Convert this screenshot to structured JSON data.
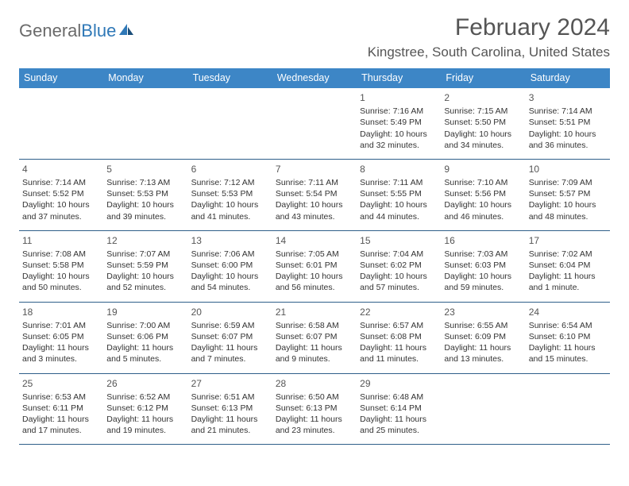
{
  "logo": {
    "part1": "General",
    "part2": "Blue"
  },
  "header": {
    "month_title": "February 2024",
    "location": "Kingstree, South Carolina, United States"
  },
  "colors": {
    "header_bg": "#3d86c6",
    "header_text": "#ffffff",
    "border": "#2f5f8a",
    "text": "#333333",
    "title": "#555555",
    "logo_gray": "#6a6a6a",
    "logo_blue": "#2f78b7",
    "page_bg": "#ffffff"
  },
  "day_names": [
    "Sunday",
    "Monday",
    "Tuesday",
    "Wednesday",
    "Thursday",
    "Friday",
    "Saturday"
  ],
  "layout": {
    "columns": 7,
    "rows": 5,
    "cell_font_size_pt": 8,
    "daynum_font_size_pt": 9,
    "header_font_size_pt": 10,
    "title_font_size_pt": 23,
    "location_font_size_pt": 13
  },
  "weeks": [
    [
      {
        "empty": true
      },
      {
        "empty": true
      },
      {
        "empty": true
      },
      {
        "empty": true
      },
      {
        "day": "1",
        "sunrise": "Sunrise: 7:16 AM",
        "sunset": "Sunset: 5:49 PM",
        "daylight": "Daylight: 10 hours and 32 minutes."
      },
      {
        "day": "2",
        "sunrise": "Sunrise: 7:15 AM",
        "sunset": "Sunset: 5:50 PM",
        "daylight": "Daylight: 10 hours and 34 minutes."
      },
      {
        "day": "3",
        "sunrise": "Sunrise: 7:14 AM",
        "sunset": "Sunset: 5:51 PM",
        "daylight": "Daylight: 10 hours and 36 minutes."
      }
    ],
    [
      {
        "day": "4",
        "sunrise": "Sunrise: 7:14 AM",
        "sunset": "Sunset: 5:52 PM",
        "daylight": "Daylight: 10 hours and 37 minutes."
      },
      {
        "day": "5",
        "sunrise": "Sunrise: 7:13 AM",
        "sunset": "Sunset: 5:53 PM",
        "daylight": "Daylight: 10 hours and 39 minutes."
      },
      {
        "day": "6",
        "sunrise": "Sunrise: 7:12 AM",
        "sunset": "Sunset: 5:53 PM",
        "daylight": "Daylight: 10 hours and 41 minutes."
      },
      {
        "day": "7",
        "sunrise": "Sunrise: 7:11 AM",
        "sunset": "Sunset: 5:54 PM",
        "daylight": "Daylight: 10 hours and 43 minutes."
      },
      {
        "day": "8",
        "sunrise": "Sunrise: 7:11 AM",
        "sunset": "Sunset: 5:55 PM",
        "daylight": "Daylight: 10 hours and 44 minutes."
      },
      {
        "day": "9",
        "sunrise": "Sunrise: 7:10 AM",
        "sunset": "Sunset: 5:56 PM",
        "daylight": "Daylight: 10 hours and 46 minutes."
      },
      {
        "day": "10",
        "sunrise": "Sunrise: 7:09 AM",
        "sunset": "Sunset: 5:57 PM",
        "daylight": "Daylight: 10 hours and 48 minutes."
      }
    ],
    [
      {
        "day": "11",
        "sunrise": "Sunrise: 7:08 AM",
        "sunset": "Sunset: 5:58 PM",
        "daylight": "Daylight: 10 hours and 50 minutes."
      },
      {
        "day": "12",
        "sunrise": "Sunrise: 7:07 AM",
        "sunset": "Sunset: 5:59 PM",
        "daylight": "Daylight: 10 hours and 52 minutes."
      },
      {
        "day": "13",
        "sunrise": "Sunrise: 7:06 AM",
        "sunset": "Sunset: 6:00 PM",
        "daylight": "Daylight: 10 hours and 54 minutes."
      },
      {
        "day": "14",
        "sunrise": "Sunrise: 7:05 AM",
        "sunset": "Sunset: 6:01 PM",
        "daylight": "Daylight: 10 hours and 56 minutes."
      },
      {
        "day": "15",
        "sunrise": "Sunrise: 7:04 AM",
        "sunset": "Sunset: 6:02 PM",
        "daylight": "Daylight: 10 hours and 57 minutes."
      },
      {
        "day": "16",
        "sunrise": "Sunrise: 7:03 AM",
        "sunset": "Sunset: 6:03 PM",
        "daylight": "Daylight: 10 hours and 59 minutes."
      },
      {
        "day": "17",
        "sunrise": "Sunrise: 7:02 AM",
        "sunset": "Sunset: 6:04 PM",
        "daylight": "Daylight: 11 hours and 1 minute."
      }
    ],
    [
      {
        "day": "18",
        "sunrise": "Sunrise: 7:01 AM",
        "sunset": "Sunset: 6:05 PM",
        "daylight": "Daylight: 11 hours and 3 minutes."
      },
      {
        "day": "19",
        "sunrise": "Sunrise: 7:00 AM",
        "sunset": "Sunset: 6:06 PM",
        "daylight": "Daylight: 11 hours and 5 minutes."
      },
      {
        "day": "20",
        "sunrise": "Sunrise: 6:59 AM",
        "sunset": "Sunset: 6:07 PM",
        "daylight": "Daylight: 11 hours and 7 minutes."
      },
      {
        "day": "21",
        "sunrise": "Sunrise: 6:58 AM",
        "sunset": "Sunset: 6:07 PM",
        "daylight": "Daylight: 11 hours and 9 minutes."
      },
      {
        "day": "22",
        "sunrise": "Sunrise: 6:57 AM",
        "sunset": "Sunset: 6:08 PM",
        "daylight": "Daylight: 11 hours and 11 minutes."
      },
      {
        "day": "23",
        "sunrise": "Sunrise: 6:55 AM",
        "sunset": "Sunset: 6:09 PM",
        "daylight": "Daylight: 11 hours and 13 minutes."
      },
      {
        "day": "24",
        "sunrise": "Sunrise: 6:54 AM",
        "sunset": "Sunset: 6:10 PM",
        "daylight": "Daylight: 11 hours and 15 minutes."
      }
    ],
    [
      {
        "day": "25",
        "sunrise": "Sunrise: 6:53 AM",
        "sunset": "Sunset: 6:11 PM",
        "daylight": "Daylight: 11 hours and 17 minutes."
      },
      {
        "day": "26",
        "sunrise": "Sunrise: 6:52 AM",
        "sunset": "Sunset: 6:12 PM",
        "daylight": "Daylight: 11 hours and 19 minutes."
      },
      {
        "day": "27",
        "sunrise": "Sunrise: 6:51 AM",
        "sunset": "Sunset: 6:13 PM",
        "daylight": "Daylight: 11 hours and 21 minutes."
      },
      {
        "day": "28",
        "sunrise": "Sunrise: 6:50 AM",
        "sunset": "Sunset: 6:13 PM",
        "daylight": "Daylight: 11 hours and 23 minutes."
      },
      {
        "day": "29",
        "sunrise": "Sunrise: 6:48 AM",
        "sunset": "Sunset: 6:14 PM",
        "daylight": "Daylight: 11 hours and 25 minutes."
      },
      {
        "empty": true
      },
      {
        "empty": true
      }
    ]
  ]
}
